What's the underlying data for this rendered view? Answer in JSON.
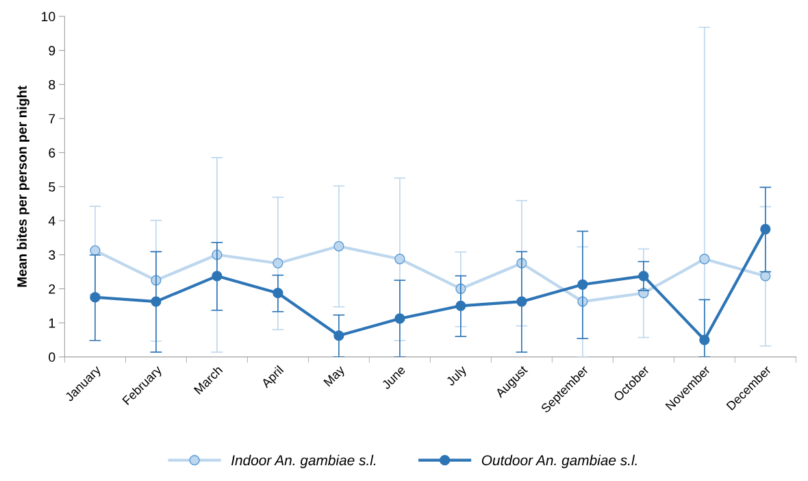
{
  "chart_data": {
    "type": "line",
    "ylabel": "Mean bites per person per night",
    "categories": [
      "January",
      "February",
      "March",
      "April",
      "May",
      "June",
      "July",
      "August",
      "September",
      "October",
      "November",
      "December"
    ],
    "series": [
      {
        "name": "Indoor An. gambiae s.l.",
        "color": "#bdd7ee",
        "values": [
          3.125,
          2.25,
          3.0,
          2.75,
          3.25,
          2.875,
          2.0,
          2.75,
          1.625,
          1.875,
          2.875,
          2.375
        ],
        "errors": [
          [
            1.83,
            4.42
          ],
          [
            0.46,
            4.01
          ],
          [
            0.14,
            5.85
          ],
          [
            0.8,
            4.69
          ],
          [
            1.47,
            5.02
          ],
          [
            0.48,
            5.25
          ],
          [
            0.89,
            3.08
          ],
          [
            0.91,
            4.59
          ],
          [
            0,
            3.23
          ],
          [
            0.57,
            3.17
          ],
          [
            0,
            9.68
          ],
          [
            0.32,
            4.41
          ]
        ]
      },
      {
        "name": "Outdoor An. gambiae s.l.",
        "color": "#2e75b6",
        "values": [
          1.75,
          1.625,
          2.375,
          1.875,
          0.625,
          1.125,
          1.5,
          1.625,
          2.125,
          2.375,
          0.5,
          3.75
        ],
        "errors": [
          [
            0.48,
            2.99
          ],
          [
            0.14,
            3.09
          ],
          [
            1.37,
            3.36
          ],
          [
            1.33,
            2.4
          ],
          [
            0,
            1.23
          ],
          [
            0,
            2.25
          ],
          [
            0.6,
            2.38
          ],
          [
            0.14,
            3.09
          ],
          [
            0.54,
            3.69
          ],
          [
            1.95,
            2.8
          ],
          [
            0,
            1.68
          ],
          [
            2.5,
            4.98
          ]
        ]
      }
    ],
    "ylim": [
      0,
      10
    ],
    "yticks": [
      0,
      1,
      2,
      3,
      4,
      5,
      6,
      7,
      8,
      9,
      10
    ],
    "grid": false,
    "legend": "bottom",
    "marker": "circle",
    "line_style": "solid"
  }
}
